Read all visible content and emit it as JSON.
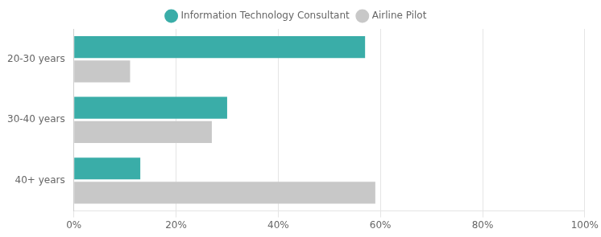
{
  "chart_data": {
    "type": "bar",
    "orientation": "horizontal",
    "categories": [
      "20-30 years",
      "30-40 years",
      "40+ years"
    ],
    "series": [
      {
        "name": "Information Technology Consultant",
        "color": "#3aada8",
        "values": [
          0.57,
          0.3,
          0.13
        ]
      },
      {
        "name": "Airline Pilot",
        "color": "#c8c8c8",
        "values": [
          0.11,
          0.27,
          0.59
        ]
      }
    ],
    "xlim": [
      0,
      1.0
    ],
    "xticks": [
      {
        "value": 0,
        "label": "0%"
      },
      {
        "value": 0.2,
        "label": "20%"
      },
      {
        "value": 0.4,
        "label": "40%"
      },
      {
        "value": 0.6,
        "label": "60%"
      },
      {
        "value": 0.8,
        "label": "80%"
      },
      {
        "value": 1.0,
        "label": "100%"
      }
    ],
    "grid": true,
    "legend": "top"
  }
}
